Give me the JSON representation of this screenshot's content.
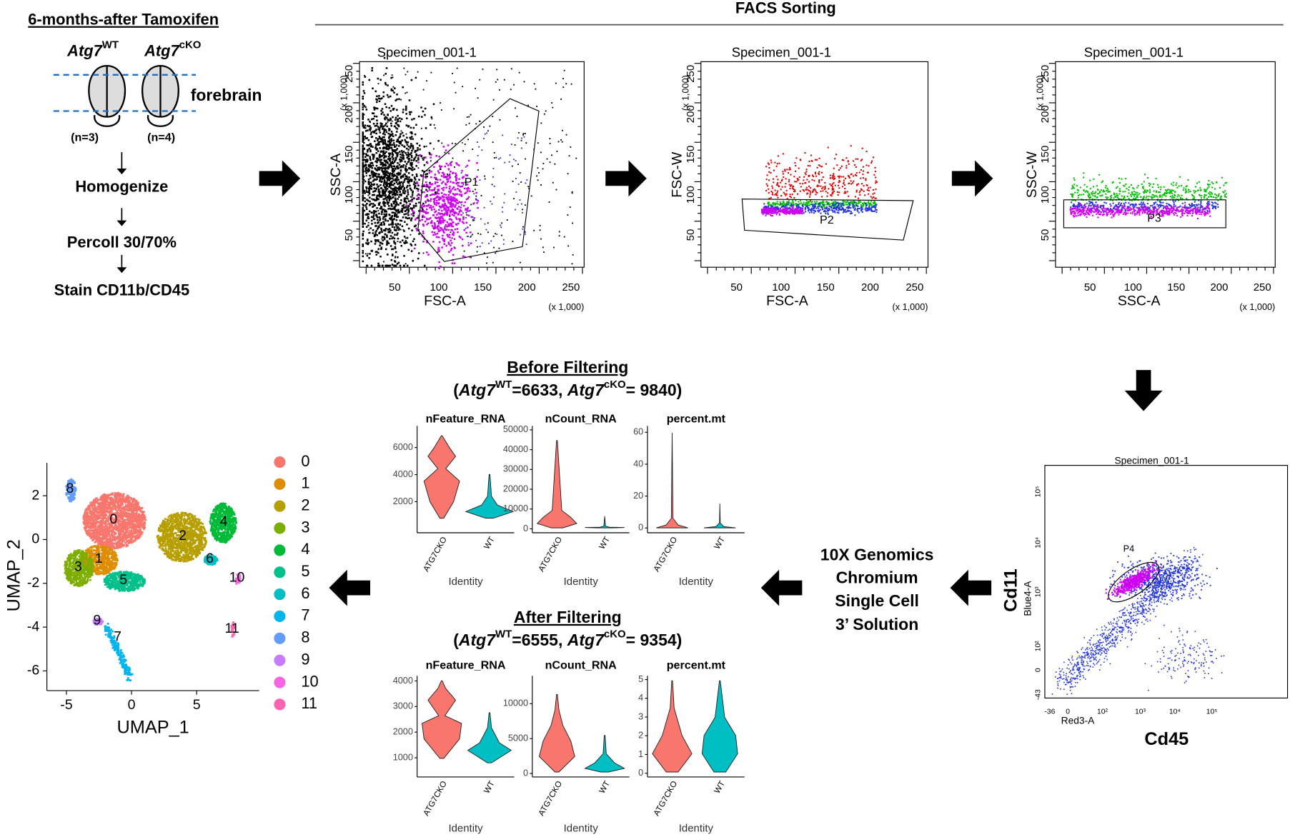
{
  "workflow": {
    "title": "6-months-after Tamoxifen",
    "groups": [
      {
        "gene": "Atg7",
        "sup": "WT",
        "n": "(n=3)"
      },
      {
        "gene": "Atg7",
        "sup": "cKO",
        "n": "(n=4)"
      }
    ],
    "region": "forebrain",
    "steps": [
      "Homogenize",
      "Percoll 30/70%",
      "Stain CD11b/CD45"
    ]
  },
  "facs": {
    "title": "FACS Sorting",
    "plots": [
      {
        "specimen": "Specimen_001-1",
        "xlabel": "FSC-A",
        "ylabel": "SSC-A",
        "gate": "P1",
        "scale": "(x 1,000)",
        "xticks": [
          50,
          100,
          150,
          200,
          250
        ],
        "yticks": [
          50,
          100,
          150,
          200,
          250
        ]
      },
      {
        "specimen": "Specimen_001-1",
        "xlabel": "FSC-A",
        "ylabel": "FSC-W",
        "gate": "P2",
        "scale": "(x 1,000)",
        "xticks": [
          50,
          100,
          150,
          200,
          250
        ],
        "yticks": [
          50,
          100,
          150,
          200,
          250
        ]
      },
      {
        "specimen": "Specimen_001-1",
        "xlabel": "SSC-A",
        "ylabel": "SSC-W",
        "gate": "P3",
        "scale": "(x 1,000)",
        "xticks": [
          50,
          100,
          150,
          200,
          250
        ],
        "yticks": [
          50,
          100,
          150,
          200,
          250
        ]
      }
    ],
    "marker_plot": {
      "specimen": "Specimen_001-1",
      "gate": "P4",
      "xlabel": "Red3-A",
      "ylabel": "Blue4-A",
      "xmarker": "Cd45",
      "ymarker": "Cd11",
      "xticks": [
        "-36",
        "0",
        "10²",
        "10³",
        "10⁴",
        "10⁵"
      ],
      "yticks": [
        "10⁵",
        "10⁴",
        "10³",
        "10²",
        "0",
        "-43"
      ]
    }
  },
  "chromium": [
    "10X Genomics",
    "Chromium",
    "Single Cell",
    "3’ Solution"
  ],
  "qc": [
    {
      "title": "Before Filtering",
      "counts": [
        "(",
        "Atg7",
        "WT",
        "=6633, ",
        "Atg7",
        "cKO",
        "= 9840)"
      ],
      "panels": [
        {
          "title": "nFeature_RNA",
          "ylim": [
            -300,
            7600
          ],
          "yticks": [
            2000,
            4000,
            6000
          ]
        },
        {
          "title": "nCount_RNA",
          "ylim": [
            -2000,
            52000
          ],
          "yticks": [
            0,
            10000,
            20000,
            30000,
            40000,
            50000
          ]
        },
        {
          "title": "percent.mt",
          "ylim": [
            -3,
            64
          ],
          "yticks": [
            0,
            20,
            40,
            60
          ]
        }
      ],
      "categories": [
        "ATG7CKO",
        "WT"
      ],
      "xlabel": "Identity"
    },
    {
      "title": "After Filtering",
      "counts": [
        "(",
        "Atg7",
        "WT",
        "=6555, ",
        "Atg7",
        "cKO",
        "= 9354)"
      ],
      "panels": [
        {
          "title": "nFeature_RNA",
          "ylim": [
            250,
            4200
          ],
          "yticks": [
            1000,
            2000,
            3000,
            4000
          ]
        },
        {
          "title": "nCount_RNA",
          "ylim": [
            -500,
            14000
          ],
          "yticks": [
            0,
            5000,
            10000
          ]
        },
        {
          "title": "percent.mt",
          "ylim": [
            -0.2,
            5.2
          ],
          "yticks": [
            0,
            1,
            2,
            3,
            4,
            5
          ]
        }
      ],
      "categories": [
        "ATG7CKO",
        "WT"
      ],
      "xlabel": "Identity"
    }
  ],
  "umap": {
    "xlabel": "UMAP_1",
    "ylabel": "UMAP_2",
    "xlim": [
      -6.5,
      9.8
    ],
    "ylim": [
      -6.9,
      3.5
    ],
    "xticks": [
      -5,
      0,
      5
    ],
    "yticks": [
      -6,
      -4,
      -2,
      0,
      2
    ],
    "clusters": [
      {
        "name": "0",
        "color": "#F8766D"
      },
      {
        "name": "1",
        "color": "#DE8C00"
      },
      {
        "name": "2",
        "color": "#B79F00"
      },
      {
        "name": "3",
        "color": "#7CAE00"
      },
      {
        "name": "4",
        "color": "#00BA38"
      },
      {
        "name": "5",
        "color": "#00C08B"
      },
      {
        "name": "6",
        "color": "#00BFC4"
      },
      {
        "name": "7",
        "color": "#00B4F0"
      },
      {
        "name": "8",
        "color": "#619CFF"
      },
      {
        "name": "9",
        "color": "#C77CFF"
      },
      {
        "name": "10",
        "color": "#F564E3"
      },
      {
        "name": "11",
        "color": "#FF64B0"
      }
    ]
  }
}
